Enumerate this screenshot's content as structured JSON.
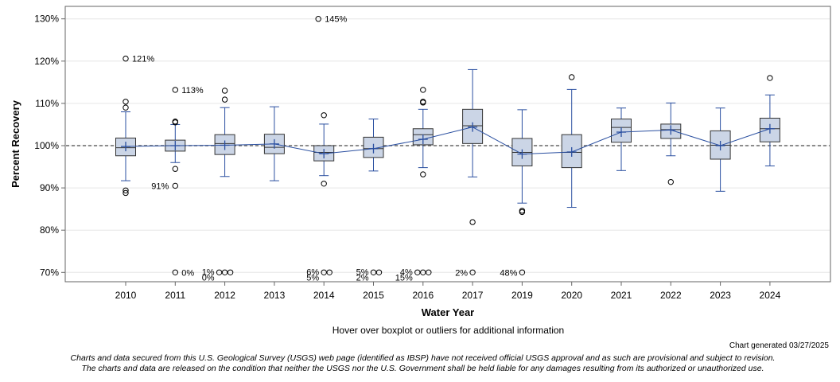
{
  "footer": {
    "hover_note": "Hover over boxplot or outliers for additional information",
    "generated": "Chart generated 03/27/2025",
    "disclaimer_line1": "Charts and data secured from this U.S. Geological Survey (USGS) web page (identified as IBSP) have not received official USGS approval and as such are provisional and subject to revision.",
    "disclaimer_line2": "The charts and data are released on the condition that neither the USGS nor the U.S. Government shall be held liable for any damages resulting from its authorized or unauthorized use."
  },
  "colors": {
    "box_fill": "#cbd5e6",
    "box_stroke": "#333333",
    "whisker": "#2a4fa0",
    "mean_line": "#2a4fa0",
    "reference_line": "#666666",
    "grid": "#e6e6e6"
  },
  "chart_data": {
    "type": "boxplot",
    "xlabel": "Water Year",
    "ylabel": "Percent Recovery",
    "ylim": [
      68,
      132
    ],
    "yticks": [
      70,
      80,
      90,
      100,
      110,
      120,
      130
    ],
    "ytick_labels": [
      "70%",
      "80%",
      "90%",
      "100%",
      "110%",
      "120%",
      "130%"
    ],
    "reference_value": 100,
    "categories": [
      "2010",
      "2011",
      "2012",
      "2013",
      "2014",
      "2015",
      "2016",
      "2017",
      "2019",
      "2020",
      "2021",
      "2022",
      "2023",
      "2024"
    ],
    "boxes": [
      {
        "year": "2010",
        "q1": 97.6,
        "median": 99.5,
        "q3": 101.8,
        "whisker_low": 91.7,
        "whisker_high": 108.0,
        "mean": 99.8
      },
      {
        "year": "2011",
        "q1": 98.7,
        "median": 100.0,
        "q3": 101.3,
        "whisker_low": 96.0,
        "whisker_high": 105.0,
        "mean": 100.0
      },
      {
        "year": "2012",
        "q1": 97.9,
        "median": 100.5,
        "q3": 102.6,
        "whisker_low": 92.7,
        "whisker_high": 109.0,
        "mean": 100.1
      },
      {
        "year": "2013",
        "q1": 98.1,
        "median": 99.6,
        "q3": 102.7,
        "whisker_low": 91.7,
        "whisker_high": 109.2,
        "mean": 100.4
      },
      {
        "year": "2014",
        "q1": 96.4,
        "median": 98.4,
        "q3": 100.0,
        "whisker_low": 92.9,
        "whisker_high": 105.1,
        "mean": 98.1
      },
      {
        "year": "2015",
        "q1": 97.2,
        "median": 99.3,
        "q3": 102.0,
        "whisker_low": 94.0,
        "whisker_high": 106.3,
        "mean": 99.3
      },
      {
        "year": "2016",
        "q1": 100.2,
        "median": 102.6,
        "q3": 104.0,
        "whisker_low": 94.8,
        "whisker_high": 108.6,
        "mean": 101.5
      },
      {
        "year": "2017",
        "q1": 100.5,
        "median": 104.7,
        "q3": 108.6,
        "whisker_low": 92.6,
        "whisker_high": 118.0,
        "mean": 104.4
      },
      {
        "year": "2019",
        "q1": 95.2,
        "median": 98.4,
        "q3": 101.7,
        "whisker_low": 86.4,
        "whisker_high": 108.5,
        "mean": 98.0
      },
      {
        "year": "2020",
        "q1": 94.8,
        "median": 98.4,
        "q3": 102.6,
        "whisker_low": 85.4,
        "whisker_high": 113.3,
        "mean": 98.5
      },
      {
        "year": "2021",
        "q1": 100.8,
        "median": 104.3,
        "q3": 106.3,
        "whisker_low": 94.1,
        "whisker_high": 108.9,
        "mean": 103.2
      },
      {
        "year": "2022",
        "q1": 101.7,
        "median": 103.8,
        "q3": 105.1,
        "whisker_low": 97.6,
        "whisker_high": 110.1,
        "mean": 103.7
      },
      {
        "year": "2023",
        "q1": 96.8,
        "median": 100.1,
        "q3": 103.5,
        "whisker_low": 89.2,
        "whisker_high": 108.9,
        "mean": 100.0
      },
      {
        "year": "2024",
        "q1": 100.9,
        "median": 104.0,
        "q3": 106.5,
        "whisker_low": 95.2,
        "whisker_high": 112.0,
        "mean": 104.0
      }
    ],
    "outliers": [
      {
        "year": "2010",
        "offset": 0,
        "value": 120.6,
        "label": "121%"
      },
      {
        "year": "2010",
        "offset": 0,
        "value": 110.4,
        "label": ""
      },
      {
        "year": "2010",
        "offset": 0,
        "value": 109.0,
        "label": ""
      },
      {
        "year": "2010",
        "offset": 0,
        "value": 89.4,
        "label": ""
      },
      {
        "year": "2010",
        "offset": 0,
        "value": 88.8,
        "label": ""
      },
      {
        "year": "2011",
        "offset": 0,
        "value": 113.2,
        "label": "113%"
      },
      {
        "year": "2011",
        "offset": 0,
        "value": 105.7,
        "label": ""
      },
      {
        "year": "2011",
        "offset": 0,
        "value": 105.5,
        "label": ""
      },
      {
        "year": "2011",
        "offset": 0,
        "value": 94.5,
        "label": ""
      },
      {
        "year": "2011",
        "offset": 0,
        "value": 90.5,
        "label": "91%",
        "label_side": "left"
      },
      {
        "year": "2011",
        "offset": 0,
        "value": 70.0,
        "label": "0%"
      },
      {
        "year": "2012",
        "offset": 0,
        "value": 113.0,
        "label": ""
      },
      {
        "year": "2012",
        "offset": 0,
        "value": 110.9,
        "label": ""
      },
      {
        "year": "2014",
        "offset": -1,
        "value": 130.0,
        "label": "145%"
      },
      {
        "year": "2014",
        "offset": 0,
        "value": 107.2,
        "label": ""
      },
      {
        "year": "2014",
        "offset": 0,
        "value": 91.0,
        "label": ""
      },
      {
        "year": "2016",
        "offset": 0,
        "value": 113.2,
        "label": ""
      },
      {
        "year": "2016",
        "offset": 0,
        "value": 110.4,
        "label": ""
      },
      {
        "year": "2016",
        "offset": 0,
        "value": 110.2,
        "label": ""
      },
      {
        "year": "2016",
        "offset": 0,
        "value": 93.2,
        "label": ""
      },
      {
        "year": "2017",
        "offset": 0,
        "value": 81.9,
        "label": ""
      },
      {
        "year": "2019",
        "offset": 0,
        "value": 84.6,
        "label": ""
      },
      {
        "year": "2019",
        "offset": 0,
        "value": 84.3,
        "label": ""
      },
      {
        "year": "2020",
        "offset": 0,
        "value": 116.2,
        "label": ""
      },
      {
        "year": "2022",
        "offset": 0,
        "value": 91.4,
        "label": ""
      },
      {
        "year": "2024",
        "offset": 0,
        "value": 116.0,
        "label": ""
      }
    ],
    "floor_markers": [
      {
        "year": "2012",
        "circles": [
          -1,
          0,
          1
        ],
        "labels": [
          {
            "text": "1%",
            "dy": -1
          },
          {
            "text": "0%",
            "dy": 6
          }
        ]
      },
      {
        "year": "2014",
        "circles": [
          0,
          1
        ],
        "labels": [
          {
            "text": "6%",
            "dy": -1
          },
          {
            "text": "5%",
            "dy": 6
          }
        ]
      },
      {
        "year": "2015",
        "circles": [
          0,
          1
        ],
        "labels": [
          {
            "text": "5%",
            "dy": -1
          },
          {
            "text": "2%",
            "dy": 6
          }
        ]
      },
      {
        "year": "2016",
        "circles": [
          -1,
          0,
          1
        ],
        "labels": [
          {
            "text": "4%",
            "dy": -1
          },
          {
            "text": "15%",
            "dy": 6
          }
        ]
      },
      {
        "year": "2017",
        "circles": [
          0
        ],
        "labels": [
          {
            "text": "2%",
            "dy": 0
          }
        ]
      },
      {
        "year": "2019",
        "circles": [
          0
        ],
        "labels": [
          {
            "text": "48%",
            "dy": 0
          }
        ]
      }
    ]
  }
}
